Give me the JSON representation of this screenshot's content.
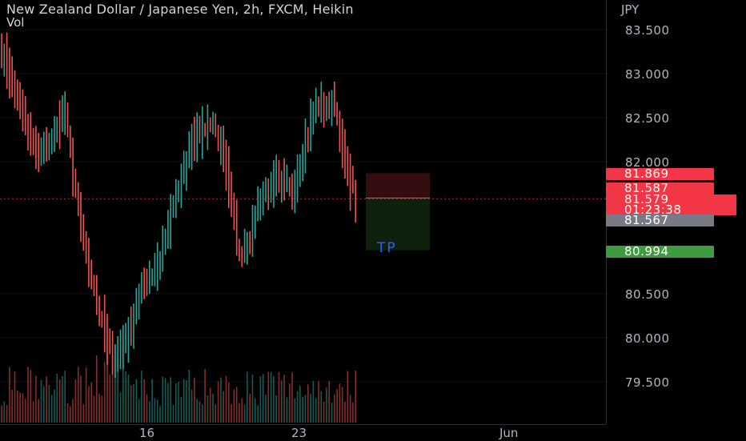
{
  "header": {
    "title": "New Zealand Dollar / Japanese Yen, 2h, FXCM, Heikin",
    "volume_label": "Vol"
  },
  "price_axis": {
    "currency": "JPY",
    "tick_labels": [
      "83.500",
      "83.000",
      "82.500",
      "82.000",
      "80.500",
      "80.000",
      "79.500"
    ]
  },
  "time_axis": {
    "tick_labels": [
      "16",
      "23",
      "Jun"
    ]
  },
  "price_tags": {
    "stop": "81.869",
    "entry": "81.587",
    "last_price": "81.579",
    "countdown": "01:23:38",
    "prev_close": "81.567",
    "target": "80.994"
  },
  "position_tool": {
    "label": "TP",
    "entry": 81.587,
    "stop": 81.869,
    "target": 80.994
  },
  "colors": {
    "up": "#26a69a",
    "down": "#ef5350",
    "tag_red": "#f23645",
    "tag_gray": "#787b86",
    "tag_green": "#3d9c40",
    "tp_text": "#2962ff",
    "background": "#000000"
  },
  "chart_data": {
    "type": "ohlc",
    "symbol": "NZDJPY",
    "interval": "2h",
    "ylim": [
      79.25,
      83.7
    ],
    "yticks": [
      83.5,
      83.0,
      82.5,
      82.0,
      80.5,
      80.0,
      79.5
    ],
    "last_price": 81.579,
    "anchors": [
      {
        "bar": 0,
        "price": 83.3
      },
      {
        "bar": 8,
        "price": 82.5
      },
      {
        "bar": 14,
        "price": 82.05
      },
      {
        "bar": 20,
        "price": 82.35
      },
      {
        "bar": 24,
        "price": 82.55
      },
      {
        "bar": 28,
        "price": 81.6
      },
      {
        "bar": 34,
        "price": 80.7
      },
      {
        "bar": 40,
        "price": 79.9
      },
      {
        "bar": 44,
        "price": 79.75
      },
      {
        "bar": 52,
        "price": 80.45
      },
      {
        "bar": 58,
        "price": 80.75
      },
      {
        "bar": 64,
        "price": 81.35
      },
      {
        "bar": 72,
        "price": 82.2
      },
      {
        "bar": 78,
        "price": 82.45
      },
      {
        "bar": 84,
        "price": 82.15
      },
      {
        "bar": 90,
        "price": 80.9
      },
      {
        "bar": 98,
        "price": 81.55
      },
      {
        "bar": 104,
        "price": 81.9
      },
      {
        "bar": 110,
        "price": 81.6
      },
      {
        "bar": 118,
        "price": 82.6
      },
      {
        "bar": 126,
        "price": 82.6
      },
      {
        "bar": 134,
        "price": 81.5
      }
    ]
  }
}
